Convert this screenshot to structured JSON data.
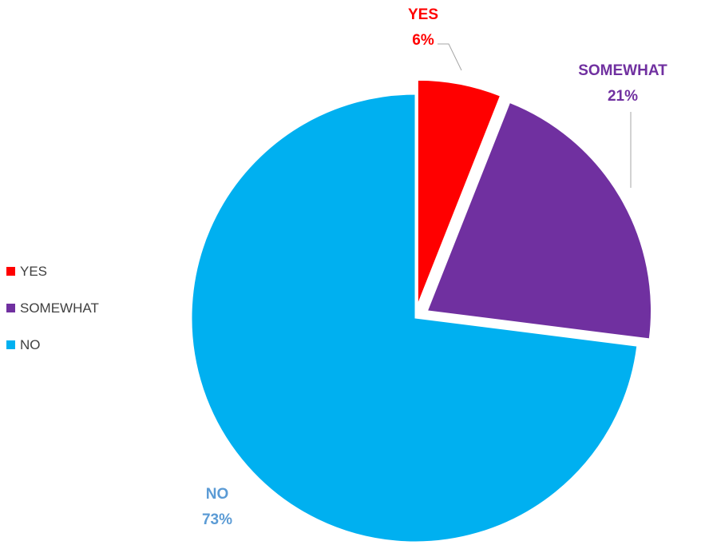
{
  "chart_data": {
    "type": "pie",
    "categories": [
      "YES",
      "SOMEWHAT",
      "NO"
    ],
    "values": [
      6,
      21,
      73
    ],
    "value_labels": [
      "6%",
      "21%",
      "73%"
    ],
    "colors": [
      "#ff0000",
      "#7030a0",
      "#00b0f0"
    ],
    "label_colors": [
      "#ff0000",
      "#7030a0",
      "#5b9bd5"
    ],
    "exploded": [
      true,
      true,
      false
    ],
    "legend_position": "left",
    "start_angle": "12 o'clock, clockwise"
  },
  "legend": {
    "items": [
      {
        "label": "YES",
        "color": "#ff0000"
      },
      {
        "label": "SOMEWHAT",
        "color": "#7030a0"
      },
      {
        "label": "NO",
        "color": "#00b0f0"
      }
    ]
  }
}
